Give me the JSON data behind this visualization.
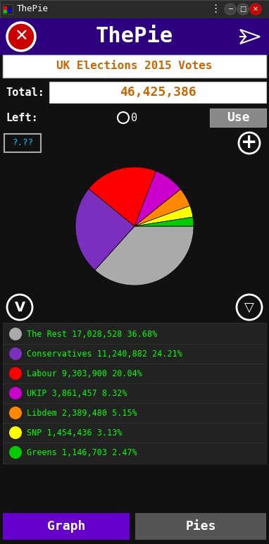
{
  "title": "ThePie",
  "subtitle": "UK Elections 2015 Votes",
  "total_label": "Total:",
  "total_value": "46,425,386",
  "left_label": "Left:",
  "left_value": "0",
  "use_button": "Use",
  "question_button": "?.??",
  "bg_color": "#111111",
  "header_bg": "#2d0080",
  "header_text_color": "#ffffff",
  "subtitle_bg": "#ffffff",
  "subtitle_text_color": "#000000",
  "total_bg": "#ffffff",
  "total_text_color": "#000000",
  "left_text_color": "#ffffff",
  "legend_bg": "#222222",
  "legend_text_color": "#00ff00",
  "button_graph_bg": "#6600cc",
  "button_pies_bg": "#555555",
  "button_text_color": "#ffffff",
  "use_button_bg": "#888888",
  "use_button_text_color": "#ffffff",
  "parties": [
    "The Rest",
    "Conservatives",
    "Labour",
    "UKIP",
    "Libdem",
    "SNP",
    "Greens"
  ],
  "votes": [
    17028528,
    11240882,
    9303900,
    3861457,
    2389480,
    1454436,
    1146703
  ],
  "percentages": [
    36.68,
    24.21,
    20.04,
    8.32,
    5.15,
    3.13,
    2.47
  ],
  "colors": [
    "#aaaaaa",
    "#7b2fbe",
    "#ff0000",
    "#cc00cc",
    "#ff8800",
    "#ffff00",
    "#00cc00"
  ],
  "figsize": [
    3.82,
    7.72
  ],
  "dpi": 100
}
